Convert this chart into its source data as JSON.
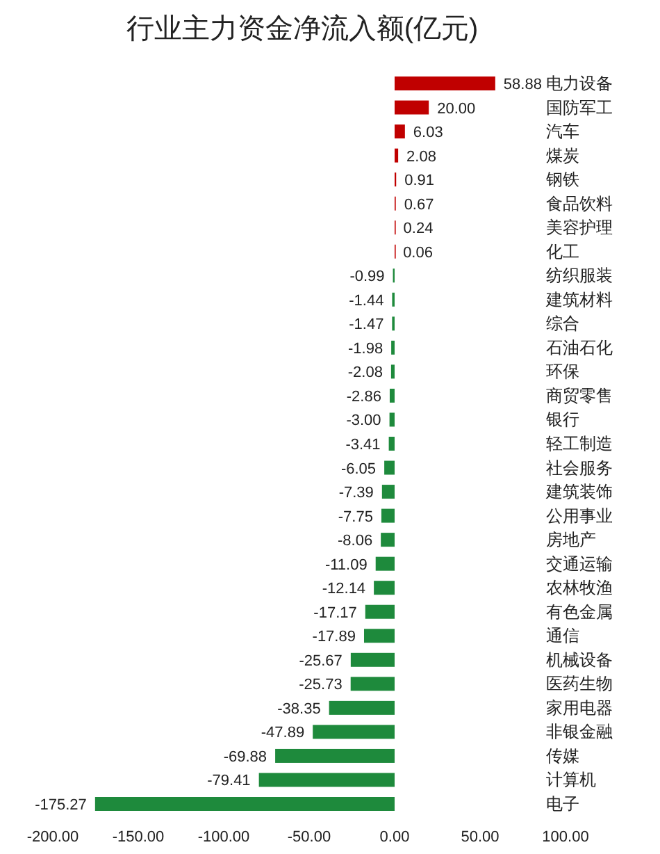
{
  "chart_data": {
    "type": "bar",
    "orientation": "horizontal",
    "title": "行业主力资金净流入额(亿元)",
    "categories": [
      "电力设备",
      "国防军工",
      "汽车",
      "煤炭",
      "钢铁",
      "食品饮料",
      "美容护理",
      "化工",
      "纺织服装",
      "建筑材料",
      "综合",
      "石油石化",
      "环保",
      "商贸零售",
      "银行",
      "轻工制造",
      "社会服务",
      "建筑装饰",
      "公用事业",
      "房地产",
      "交通运输",
      "农林牧渔",
      "有色金属",
      "通信",
      "机械设备",
      "医药生物",
      "家用电器",
      "非银金融",
      "传媒",
      "计算机",
      "电子"
    ],
    "values": [
      58.88,
      20.0,
      6.03,
      2.08,
      0.91,
      0.67,
      0.24,
      0.06,
      -0.99,
      -1.44,
      -1.47,
      -1.98,
      -2.08,
      -2.86,
      -3.0,
      -3.41,
      -6.05,
      -7.39,
      -7.75,
      -8.06,
      -11.09,
      -12.14,
      -17.17,
      -17.89,
      -25.67,
      -25.73,
      -38.35,
      -47.89,
      -69.88,
      -79.41,
      -175.27
    ],
    "value_labels": [
      "58.88",
      "20.00",
      "6.03",
      "2.08",
      "0.91",
      "0.67",
      "0.24",
      "0.06",
      "-0.99",
      "-1.44",
      "-1.47",
      "-1.98",
      "-2.08",
      "-2.86",
      "-3.00",
      "-3.41",
      "-6.05",
      "-7.39",
      "-7.75",
      "-8.06",
      "-11.09",
      "-12.14",
      "-17.17",
      "-17.89",
      "-25.67",
      "-25.73",
      "-38.35",
      "-47.89",
      "-69.88",
      "-79.41",
      "-175.27"
    ],
    "colors": [
      "#c00000",
      "#c00000",
      "#c00000",
      "#c00000",
      "#c00000",
      "#c00000",
      "#c00000",
      "#c00000",
      "#1e8a3c",
      "#1e8a3c",
      "#1e8a3c",
      "#1e8a3c",
      "#1e8a3c",
      "#1e8a3c",
      "#1e8a3c",
      "#1e8a3c",
      "#1e8a3c",
      "#1e8a3c",
      "#1e8a3c",
      "#1e8a3c",
      "#1e8a3c",
      "#1e8a3c",
      "#1e8a3c",
      "#1e8a3c",
      "#1e8a3c",
      "#1e8a3c",
      "#1e8a3c",
      "#1e8a3c",
      "#1e8a3c",
      "#1e8a3c",
      "#1e8a3c"
    ],
    "xlim": [
      -200,
      100
    ],
    "xticks": [
      {
        "value": -200,
        "label": "-200.00"
      },
      {
        "value": -150,
        "label": "-150.00"
      },
      {
        "value": -100,
        "label": "-100.00"
      },
      {
        "value": -50,
        "label": "-50.00"
      },
      {
        "value": 0,
        "label": "0.00"
      },
      {
        "value": 50,
        "label": "50.00"
      },
      {
        "value": 100,
        "label": "100.00"
      }
    ]
  }
}
